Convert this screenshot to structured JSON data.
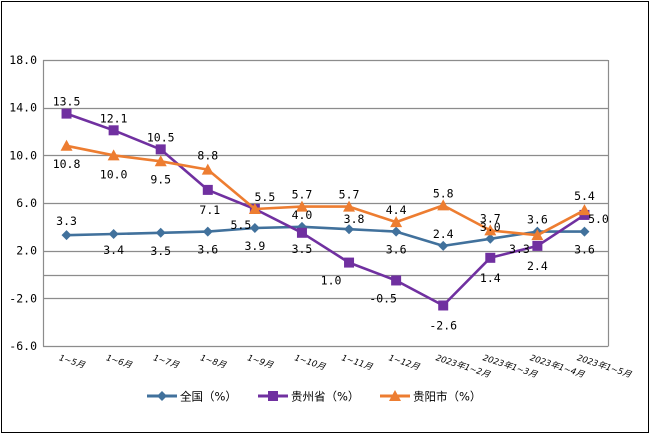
{
  "chart_data": {
    "type": "line",
    "title": "",
    "xlabel": "",
    "ylabel": "",
    "ylim": [
      -6.0,
      18.0
    ],
    "yticks": [
      "18.0",
      "14.0",
      "10.0",
      "6.0",
      "2.0",
      "-2.0",
      "-6.0"
    ],
    "ytick_values": [
      18,
      14,
      10,
      6,
      2,
      -2,
      -6
    ],
    "gridlines": [
      18,
      14,
      10,
      6,
      2,
      0,
      -2,
      -6
    ],
    "grid": true,
    "legend_position": "bottom",
    "categories": [
      "1~5月",
      "1~6月",
      "1~7月",
      "1~8月",
      "1~9月",
      "1~10月",
      "1~11月",
      "1~12月",
      "2023年1~2月",
      "2023年1~3月",
      "2023年1~4月",
      "2023年1~5月"
    ],
    "series": [
      {
        "name": "全国（%）",
        "color": "#41719C",
        "marker": "diamond",
        "values": [
          3.3,
          3.4,
          3.5,
          3.6,
          3.9,
          4.0,
          3.8,
          3.6,
          2.4,
          3.0,
          3.6,
          3.6
        ],
        "labels": [
          "3.3",
          "3.4",
          "3.5",
          "3.6",
          "3.9",
          "4.0",
          "3.8",
          "3.6",
          "2.4",
          "3.0",
          "3.6",
          "3.6"
        ]
      },
      {
        "name": "贵州省（%）",
        "color": "#7030A0",
        "marker": "square",
        "values": [
          13.5,
          12.1,
          10.5,
          7.1,
          5.5,
          3.5,
          1.0,
          -0.5,
          -2.6,
          1.4,
          2.4,
          5.0
        ],
        "labels": [
          "13.5",
          "12.1",
          "10.5",
          "7.1",
          "5.5",
          "3.5",
          "1.0",
          "-0.5",
          "-2.6",
          "1.4",
          "2.4",
          "5.0"
        ]
      },
      {
        "name": "贵阳市（%）",
        "color": "#ED7D31",
        "marker": "triangle",
        "values": [
          10.8,
          10.0,
          9.5,
          8.8,
          5.5,
          5.7,
          5.7,
          4.4,
          5.8,
          3.7,
          3.3,
          5.4
        ],
        "labels": [
          "10.8",
          "10.0",
          "9.5",
          "8.8",
          "5.5",
          "5.7",
          "5.7",
          "4.4",
          "5.8",
          "3.7",
          "3.3",
          "5.4"
        ]
      }
    ]
  }
}
